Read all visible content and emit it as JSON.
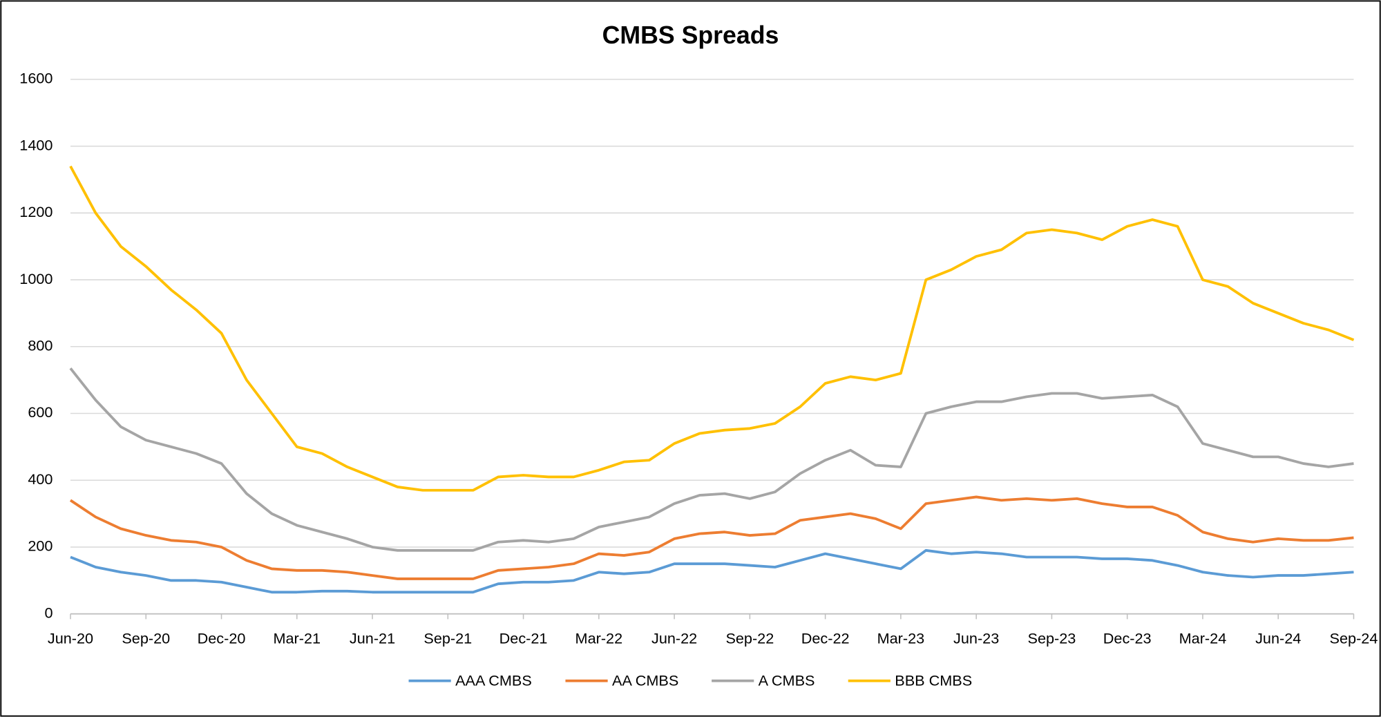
{
  "chart_data": {
    "type": "line",
    "title": "CMBS Spreads",
    "categories": [
      "Jun-20",
      null,
      null,
      "Sep-20",
      null,
      null,
      "Dec-20",
      null,
      null,
      "Mar-21",
      null,
      null,
      "Jun-21",
      null,
      null,
      "Sep-21",
      null,
      null,
      "Dec-21",
      null,
      null,
      "Mar-22",
      null,
      null,
      "Jun-22",
      null,
      null,
      "Sep-22",
      null,
      null,
      "Dec-22",
      null,
      null,
      "Mar-23",
      null,
      null,
      "Jun-23",
      null,
      null,
      "Sep-23",
      null,
      null,
      "Dec-23",
      null,
      null,
      "Mar-24",
      null,
      null,
      "Jun-24",
      null,
      null,
      "Sep-24"
    ],
    "series": [
      {
        "name": "AAA CMBS",
        "color": "#5b9bd5",
        "values": [
          170,
          140,
          125,
          115,
          100,
          100,
          95,
          80,
          65,
          65,
          68,
          68,
          65,
          65,
          65,
          65,
          65,
          90,
          95,
          95,
          100,
          125,
          120,
          125,
          150,
          150,
          150,
          145,
          140,
          160,
          180,
          165,
          150,
          135,
          190,
          180,
          185,
          180,
          170,
          170,
          170,
          165,
          165,
          160,
          145,
          125,
          115,
          110,
          115,
          115,
          120,
          125
        ]
      },
      {
        "name": "AA CMBS",
        "color": "#ed7d31",
        "values": [
          340,
          290,
          255,
          235,
          220,
          215,
          200,
          160,
          135,
          130,
          130,
          125,
          115,
          105,
          105,
          105,
          105,
          130,
          135,
          140,
          150,
          180,
          175,
          185,
          225,
          240,
          245,
          235,
          240,
          280,
          290,
          300,
          285,
          255,
          330,
          340,
          350,
          340,
          345,
          340,
          345,
          330,
          320,
          320,
          295,
          245,
          225,
          215,
          225,
          220,
          220,
          228
        ]
      },
      {
        "name": "A CMBS",
        "color": "#a5a5a5",
        "values": [
          735,
          640,
          560,
          520,
          500,
          480,
          450,
          360,
          300,
          265,
          245,
          225,
          200,
          190,
          190,
          190,
          190,
          215,
          220,
          215,
          225,
          260,
          275,
          290,
          330,
          355,
          360,
          345,
          365,
          420,
          460,
          490,
          445,
          440,
          600,
          620,
          635,
          635,
          650,
          660,
          660,
          645,
          650,
          655,
          620,
          510,
          490,
          470,
          470,
          450,
          440,
          450
        ]
      },
      {
        "name": "BBB CMBS",
        "color": "#ffc000",
        "values": [
          1340,
          1200,
          1100,
          1040,
          970,
          910,
          840,
          700,
          600,
          500,
          480,
          440,
          410,
          380,
          370,
          370,
          370,
          410,
          415,
          410,
          410,
          430,
          455,
          460,
          510,
          540,
          550,
          555,
          570,
          620,
          690,
          710,
          700,
          720,
          1000,
          1030,
          1070,
          1090,
          1140,
          1150,
          1140,
          1120,
          1160,
          1180,
          1160,
          1000,
          980,
          930,
          900,
          870,
          850,
          820
        ]
      }
    ],
    "ylim": [
      0,
      1600
    ],
    "yticks": [
      0,
      200,
      400,
      600,
      800,
      1000,
      1200,
      1400,
      1600
    ],
    "grid": true,
    "legend": "bottom"
  }
}
